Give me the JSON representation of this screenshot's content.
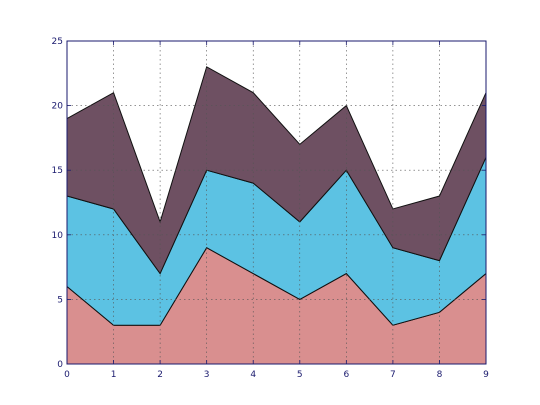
{
  "chart_data": {
    "type": "area",
    "stacked": true,
    "title": "",
    "xlabel": "",
    "ylabel": "",
    "x": [
      0,
      1,
      2,
      3,
      4,
      5,
      6,
      7,
      8,
      9
    ],
    "xlim": [
      0,
      9
    ],
    "ylim": [
      0,
      25
    ],
    "xticks": [
      "0",
      "1",
      "2",
      "3",
      "4",
      "5",
      "6",
      "7",
      "8",
      "9"
    ],
    "yticks": [
      "0",
      "5",
      "10",
      "15",
      "20",
      "25"
    ],
    "grid": true,
    "legend": "none",
    "series": [
      {
        "values": [
          6,
          3,
          3,
          9,
          7,
          5,
          7,
          3,
          4,
          7
        ],
        "color": "#d98f8f"
      },
      {
        "values": [
          7,
          9,
          4,
          6,
          7,
          6,
          8,
          6,
          4,
          9
        ],
        "color": "#5cc2e3"
      },
      {
        "values": [
          6,
          9,
          4,
          8,
          7,
          6,
          5,
          3,
          5,
          5
        ],
        "color": "#6e5062"
      }
    ]
  }
}
